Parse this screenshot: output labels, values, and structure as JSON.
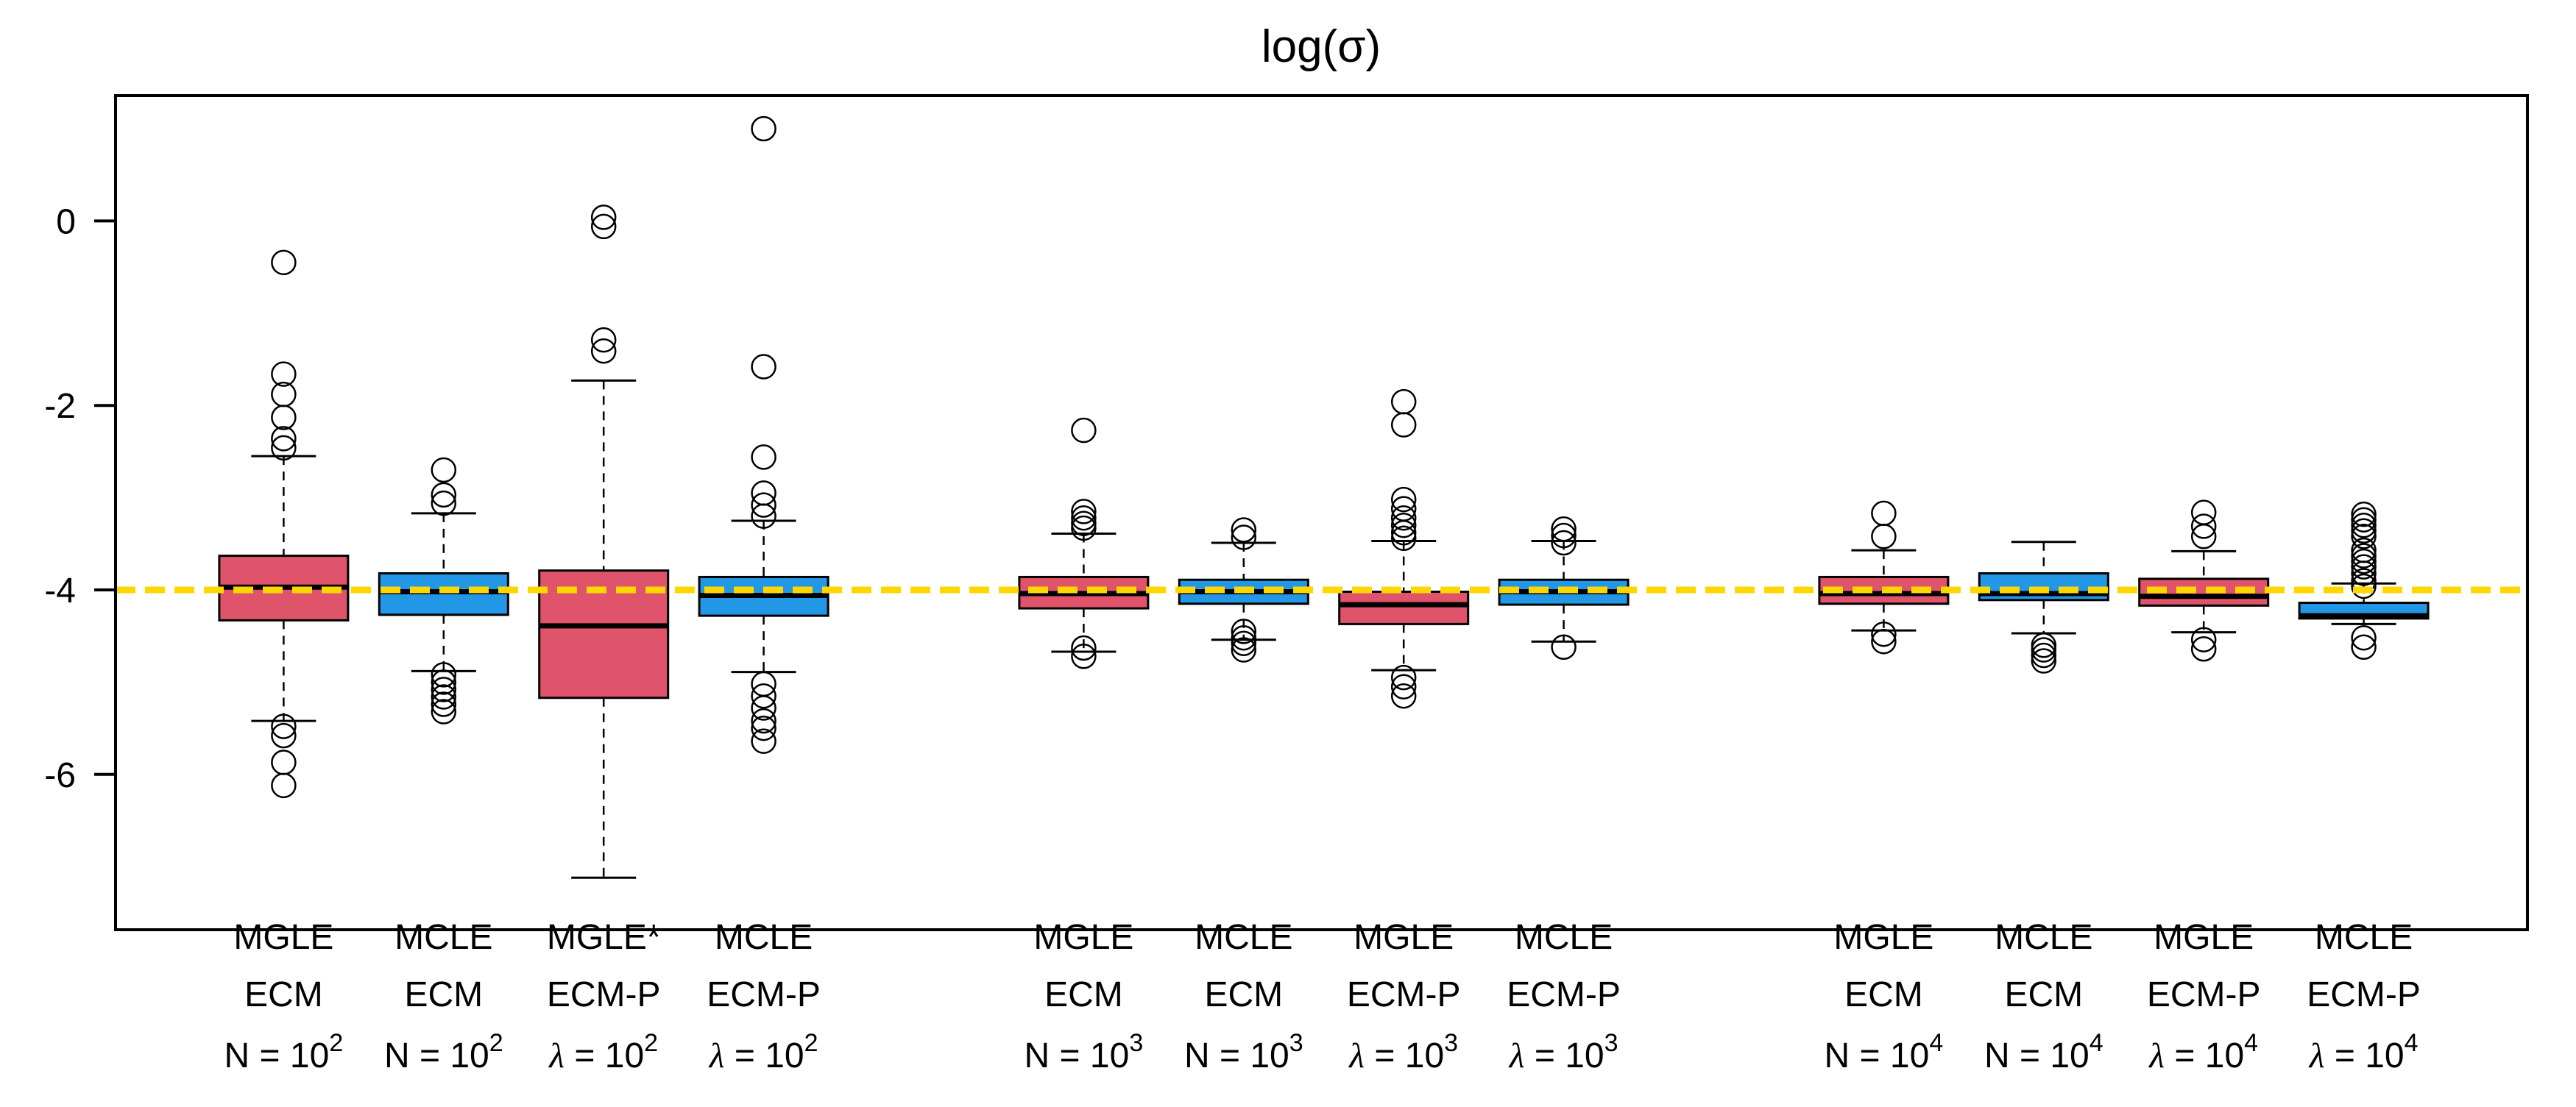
{
  "chart_data": {
    "type": "boxplot",
    "title": "log(σ)",
    "xlabel": "",
    "ylabel": "",
    "grid": false,
    "legend": "none",
    "y_axis": {
      "tick_values": [
        0,
        -2,
        -4,
        -6
      ],
      "tick_labels": [
        "0",
        "-2",
        "-4",
        "-6"
      ],
      "range": [
        1.36,
        -7.68
      ]
    },
    "reference_line": {
      "y": -4,
      "color": "#FFD700",
      "style": "dashed"
    },
    "colors": {
      "red_fill": "#DF536B",
      "blue_fill": "#2297E6",
      "stroke": "#000000",
      "background": "#ffffff"
    },
    "boxes": [
      {
        "group": 0,
        "pos": 0,
        "estimator": "MGLE",
        "algorithm": "ECM",
        "param": "N",
        "base": "10",
        "exp": "2",
        "color": "red",
        "median": -3.97,
        "q1": -4.33,
        "q3": -3.63,
        "whisker_low": -5.42,
        "whisker_high": -2.55,
        "outliers_high": [
          -0.45,
          -1.66,
          -1.88,
          -2.13,
          -2.36,
          -2.46
        ],
        "outliers_low": [
          -5.48,
          -5.58,
          -5.87,
          -6.12
        ]
      },
      {
        "group": 0,
        "pos": 1,
        "estimator": "MCLE",
        "algorithm": "ECM",
        "param": "N",
        "base": "10",
        "exp": "2",
        "color": "blue",
        "median": -4.02,
        "q1": -4.27,
        "q3": -3.82,
        "whisker_low": -4.88,
        "whisker_high": -3.17,
        "outliers_high": [
          -2.7,
          -2.97,
          -3.06
        ],
        "outliers_low": [
          -4.92,
          -5.0,
          -5.08,
          -5.16,
          -5.24,
          -5.32
        ]
      },
      {
        "group": 0,
        "pos": 2,
        "estimator": "MGLE*",
        "algorithm": "ECM-P",
        "param": "λ",
        "base": "10",
        "exp": "2",
        "color": "red",
        "median": -4.39,
        "q1": -5.17,
        "q3": -3.79,
        "whisker_low": -7.12,
        "whisker_high": -1.73,
        "outliers_high": [
          0.04,
          -0.06,
          -1.29,
          -1.41
        ],
        "outliers_low": []
      },
      {
        "group": 0,
        "pos": 3,
        "estimator": "MCLE",
        "algorithm": "ECM-P",
        "param": "λ",
        "base": "10",
        "exp": "2",
        "color": "blue",
        "median": -4.06,
        "q1": -4.28,
        "q3": -3.86,
        "whisker_low": -4.89,
        "whisker_high": -3.25,
        "outliers_high": [
          1.0,
          -1.58,
          -2.56,
          -2.95,
          -3.08,
          -3.2
        ],
        "outliers_low": [
          -5.02,
          -5.15,
          -5.28,
          -5.42,
          -5.5,
          -5.64
        ]
      },
      {
        "group": 1,
        "pos": 0,
        "estimator": "MGLE",
        "algorithm": "ECM",
        "param": "N",
        "base": "10",
        "exp": "3",
        "color": "red",
        "median": -4.04,
        "q1": -4.2,
        "q3": -3.86,
        "whisker_low": -4.67,
        "whisker_high": -3.39,
        "outliers_high": [
          -2.27,
          -3.15,
          -3.22,
          -3.28,
          -3.33
        ],
        "outliers_low": [
          -4.63,
          -4.72
        ]
      },
      {
        "group": 1,
        "pos": 1,
        "estimator": "MCLE",
        "algorithm": "ECM",
        "param": "N",
        "base": "10",
        "exp": "3",
        "color": "blue",
        "median": -4.02,
        "q1": -4.15,
        "q3": -3.89,
        "whisker_low": -4.54,
        "whisker_high": -3.49,
        "outliers_high": [
          -3.35,
          -3.43
        ],
        "outliers_low": [
          -4.45,
          -4.52,
          -4.58,
          -4.65
        ]
      },
      {
        "group": 1,
        "pos": 2,
        "estimator": "MGLE",
        "algorithm": "ECM-P",
        "param": "λ",
        "base": "10",
        "exp": "3",
        "color": "red",
        "median": -4.16,
        "q1": -4.37,
        "q3": -4.02,
        "whisker_low": -4.87,
        "whisker_high": -3.47,
        "outliers_high": [
          -1.96,
          -2.21,
          -3.02,
          -3.12,
          -3.22,
          -3.3,
          -3.38,
          -3.44
        ],
        "outliers_low": [
          -4.95,
          -5.05,
          -5.15
        ]
      },
      {
        "group": 1,
        "pos": 3,
        "estimator": "MCLE",
        "algorithm": "ECM-P",
        "param": "λ",
        "base": "10",
        "exp": "3",
        "color": "blue",
        "median": -4.02,
        "q1": -4.16,
        "q3": -3.89,
        "whisker_low": -4.56,
        "whisker_high": -3.47,
        "outliers_high": [
          -3.34,
          -3.41,
          -3.49
        ],
        "outliers_low": [
          -4.62
        ]
      },
      {
        "group": 2,
        "pos": 0,
        "estimator": "MGLE",
        "algorithm": "ECM",
        "param": "N",
        "base": "10",
        "exp": "4",
        "color": "red",
        "median": -4.04,
        "q1": -4.15,
        "q3": -3.86,
        "whisker_low": -4.44,
        "whisker_high": -3.57,
        "outliers_high": [
          -3.17,
          -3.42
        ],
        "outliers_low": [
          -4.48,
          -4.56
        ]
      },
      {
        "group": 2,
        "pos": 1,
        "estimator": "MCLE",
        "algorithm": "ECM",
        "param": "N",
        "base": "10",
        "exp": "4",
        "color": "blue",
        "median": -4.04,
        "q1": -4.11,
        "q3": -3.82,
        "whisker_low": -4.47,
        "whisker_high": -3.48,
        "outliers_high": [],
        "outliers_low": [
          -4.6,
          -4.65,
          -4.71,
          -4.77
        ]
      },
      {
        "group": 2,
        "pos": 2,
        "estimator": "MGLE",
        "algorithm": "ECM-P",
        "param": "λ",
        "base": "10",
        "exp": "4",
        "color": "red",
        "median": -4.07,
        "q1": -4.17,
        "q3": -3.88,
        "whisker_low": -4.46,
        "whisker_high": -3.58,
        "outliers_high": [
          -3.16,
          -3.31,
          -3.42
        ],
        "outliers_low": [
          -4.54,
          -4.64
        ]
      },
      {
        "group": 2,
        "pos": 3,
        "estimator": "MCLE",
        "algorithm": "ECM-P",
        "param": "λ",
        "base": "10",
        "exp": "4",
        "color": "blue",
        "median": -4.28,
        "q1": -4.31,
        "q3": -4.14,
        "whisker_low": -4.37,
        "whisker_high": -3.93,
        "outliers_high": [
          -3.18,
          -3.24,
          -3.3,
          -3.36,
          -3.42,
          -3.57,
          -3.63,
          -3.69,
          -3.75,
          -3.82,
          -3.9,
          -3.96
        ],
        "outliers_low": [
          -4.52,
          -4.62
        ]
      }
    ]
  }
}
